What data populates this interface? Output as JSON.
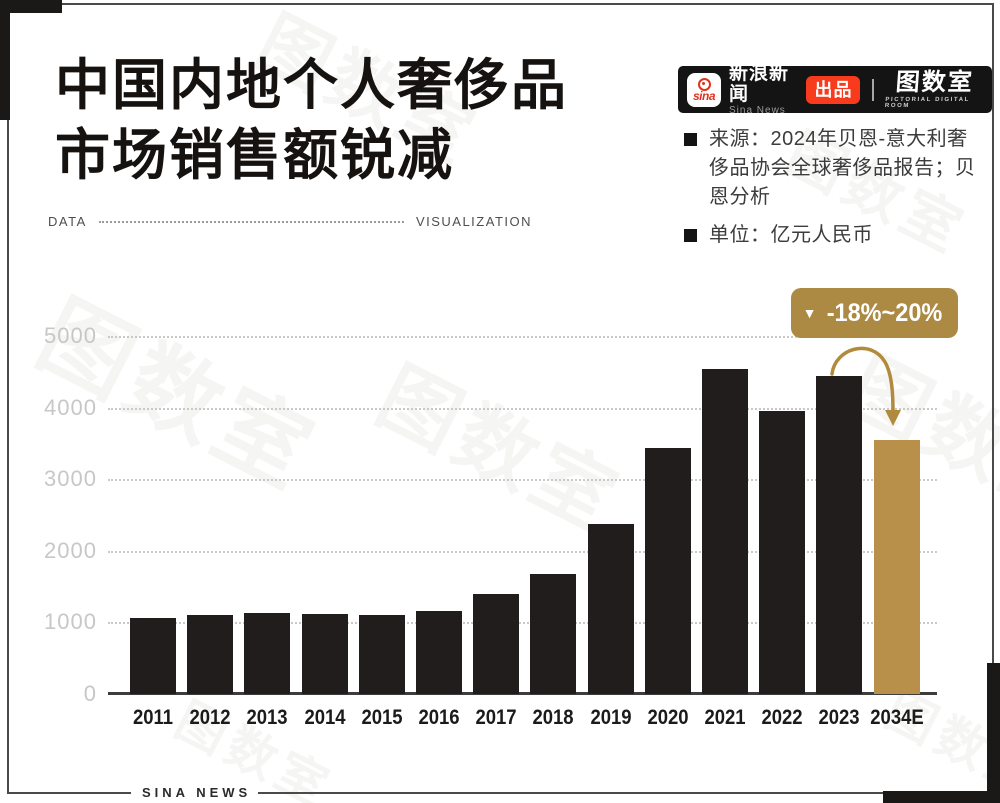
{
  "meta": {
    "title_line1": "中国内地个人奢侈品",
    "title_line2": "市场销售额锐减"
  },
  "divider": {
    "left": "DATA",
    "right": "VISUALIZATION"
  },
  "header": {
    "sina_logo_text": "sina",
    "brand_cn": "新浪新闻",
    "brand_en": "Sina News",
    "badge": "出品",
    "studio": "图数室",
    "studio_sub": "PICTORIAL DIGITAL ROOM"
  },
  "notes": {
    "source": "来源：2024年贝恩-意大利奢侈品协会全球奢侈品报告；贝恩分析",
    "unit": "单位：亿元人民币"
  },
  "annotation": {
    "icon": "▼",
    "text": "-18%~20%"
  },
  "footer": {
    "text": "SINA NEWS"
  },
  "watermark": {
    "text": "图数室"
  },
  "colors": {
    "bar": "#201d1c",
    "highlight": "#b9904a",
    "badge": "#ad8a43",
    "arrow": "#b28a3e",
    "accent_red": "#f83b1d"
  },
  "chart_data": {
    "type": "bar",
    "title": "中国内地个人奢侈品市场销售额锐减",
    "unit_label": "亿元人民币",
    "categories": [
      "2011",
      "2012",
      "2013",
      "2014",
      "2015",
      "2016",
      "2017",
      "2018",
      "2019",
      "2020",
      "2021",
      "2022",
      "2023",
      "2034E"
    ],
    "values": [
      1060,
      1100,
      1125,
      1120,
      1100,
      1165,
      1390,
      1670,
      2370,
      3440,
      4540,
      3950,
      4440,
      3550
    ],
    "highlight_index": 13,
    "highlight_annotation": "-18%~20%",
    "ylim": [
      0,
      5000
    ],
    "yticks": [
      0,
      1000,
      2000,
      3000,
      4000,
      5000
    ],
    "grid": "dotted-horizontal",
    "legend": "none"
  }
}
